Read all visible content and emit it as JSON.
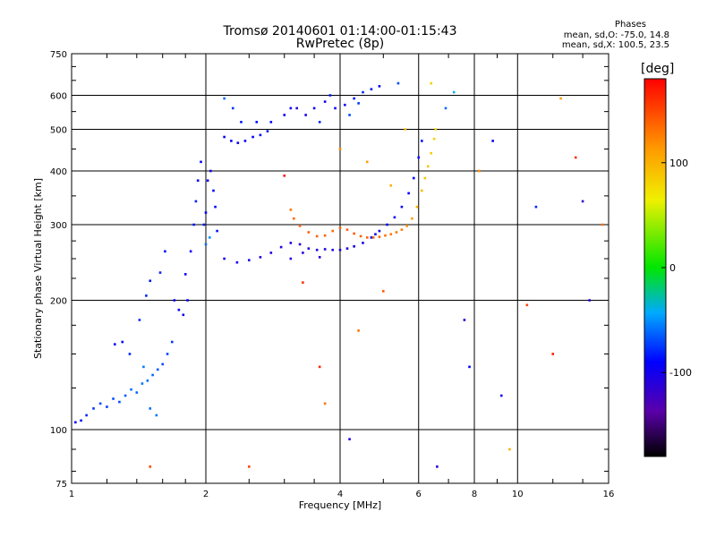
{
  "header": {
    "title_line1": "Tromsø 20140601 01:14:00-01:15:43",
    "title_line2": "RwPretec (8p)",
    "stats_title": "Phases",
    "stats_o": "mean, sd,O: -75.0, 14.8",
    "stats_x": "mean, sd,X: 100.5, 23.5"
  },
  "colorbar": {
    "unit": "[deg]",
    "range": [
      -180,
      180
    ],
    "ticks": [
      {
        "value": 100,
        "label": "100"
      },
      {
        "value": 0,
        "label": "0"
      },
      {
        "value": -100,
        "label": "-100"
      }
    ]
  },
  "chart_data": {
    "type": "scatter",
    "xlabel": "Frequency [MHz]",
    "ylabel": "Stationary phase Virtual Height [km]",
    "xscale": "log",
    "yscale": "log",
    "xlim": [
      1,
      16
    ],
    "ylim": [
      75,
      750
    ],
    "xticks": [
      {
        "value": 1,
        "label": "1"
      },
      {
        "value": 2,
        "label": "2"
      },
      {
        "value": 4,
        "label": "4"
      },
      {
        "value": 6,
        "label": "6"
      },
      {
        "value": 8,
        "label": "8"
      },
      {
        "value": 10,
        "label": "10"
      },
      {
        "value": 16,
        "label": "16"
      }
    ],
    "yticks": [
      {
        "value": 75,
        "label": "75"
      },
      {
        "value": 100,
        "label": "100"
      },
      {
        "value": 200,
        "label": "200"
      },
      {
        "value": 300,
        "label": "300"
      },
      {
        "value": 400,
        "label": "400"
      },
      {
        "value": 500,
        "label": "500"
      },
      {
        "value": 600,
        "label": "600"
      },
      {
        "value": 750,
        "label": "750"
      }
    ],
    "grid": true,
    "series": [
      {
        "points": [
          [
            1.02,
            104,
            -90
          ],
          [
            1.05,
            105,
            -85
          ],
          [
            1.08,
            108,
            -80
          ],
          [
            1.12,
            112,
            -75
          ],
          [
            1.16,
            115,
            -70
          ],
          [
            1.2,
            113,
            -72
          ],
          [
            1.24,
            118,
            -68
          ],
          [
            1.28,
            116,
            -70
          ],
          [
            1.32,
            120,
            -65
          ],
          [
            1.36,
            124,
            -60
          ],
          [
            1.4,
            122,
            -62
          ],
          [
            1.44,
            128,
            -58
          ],
          [
            1.48,
            130,
            -60
          ],
          [
            1.52,
            134,
            -62
          ],
          [
            1.56,
            138,
            -65
          ],
          [
            1.6,
            142,
            -70
          ],
          [
            1.64,
            150,
            -72
          ],
          [
            1.68,
            160,
            -75
          ],
          [
            1.3,
            160,
            -90
          ],
          [
            1.25,
            158,
            -95
          ],
          [
            1.35,
            150,
            -80
          ],
          [
            1.45,
            140,
            -55
          ],
          [
            1.5,
            112,
            -60
          ],
          [
            1.55,
            108,
            -58
          ],
          [
            1.42,
            180,
            -78
          ],
          [
            1.47,
            205,
            -80
          ],
          [
            1.5,
            222,
            -85
          ],
          [
            1.58,
            232,
            -80
          ],
          [
            1.62,
            260,
            -88
          ],
          [
            1.7,
            200,
            -92
          ],
          [
            1.74,
            190,
            -95
          ],
          [
            1.78,
            185,
            -98
          ],
          [
            1.82,
            200,
            -95
          ],
          [
            1.8,
            230,
            -92
          ],
          [
            1.85,
            260,
            -90
          ],
          [
            1.88,
            300,
            -85
          ],
          [
            1.9,
            340,
            -82
          ],
          [
            1.92,
            380,
            -90
          ],
          [
            1.95,
            420,
            -88
          ],
          [
            1.98,
            300,
            -85
          ],
          [
            2.0,
            320,
            -90
          ],
          [
            2.02,
            380,
            -95
          ],
          [
            2.05,
            400,
            -100
          ],
          [
            2.08,
            360,
            -92
          ],
          [
            2.1,
            330,
            -88
          ],
          [
            2.12,
            290,
            -85
          ],
          [
            2.0,
            270,
            -60
          ],
          [
            2.04,
            280,
            -50
          ]
        ]
      },
      {
        "points": [
          [
            2.2,
            480,
            -90
          ],
          [
            2.28,
            470,
            -92
          ],
          [
            2.36,
            465,
            -95
          ],
          [
            2.45,
            470,
            -92
          ],
          [
            2.55,
            480,
            -90
          ],
          [
            2.65,
            485,
            -88
          ],
          [
            2.75,
            495,
            -85
          ],
          [
            2.3,
            560,
            -75
          ],
          [
            2.2,
            590,
            -60
          ],
          [
            2.4,
            520,
            -85
          ],
          [
            2.6,
            520,
            -88
          ],
          [
            2.8,
            520,
            -90
          ],
          [
            3.0,
            540,
            -95
          ],
          [
            3.1,
            560,
            -100
          ],
          [
            3.2,
            560,
            -105
          ],
          [
            3.35,
            540,
            -100
          ],
          [
            3.5,
            560,
            -95
          ],
          [
            3.7,
            580,
            -100
          ],
          [
            3.9,
            560,
            -95
          ],
          [
            4.1,
            570,
            -90
          ],
          [
            4.3,
            590,
            -85
          ],
          [
            4.5,
            610,
            -80
          ],
          [
            4.7,
            620,
            -85
          ],
          [
            4.9,
            630,
            -90
          ],
          [
            3.6,
            520,
            -80
          ],
          [
            3.8,
            600,
            -85
          ],
          [
            4.2,
            540,
            -70
          ],
          [
            4.4,
            575,
            -75
          ]
        ]
      },
      {
        "points": [
          [
            2.2,
            250,
            -100
          ],
          [
            2.35,
            245,
            -102
          ],
          [
            2.5,
            248,
            -104
          ],
          [
            2.65,
            252,
            -105
          ],
          [
            2.8,
            258,
            -106
          ],
          [
            2.95,
            266,
            -107
          ],
          [
            3.1,
            272,
            -108
          ],
          [
            3.25,
            270,
            -108
          ],
          [
            3.4,
            264,
            -107
          ],
          [
            3.55,
            262,
            -106
          ],
          [
            3.7,
            263,
            -105
          ],
          [
            3.85,
            262,
            -104
          ],
          [
            4.0,
            262,
            -103
          ],
          [
            4.15,
            264,
            -102
          ],
          [
            4.3,
            267,
            -101
          ],
          [
            4.5,
            272,
            -100
          ],
          [
            4.7,
            280,
            -100
          ],
          [
            4.9,
            290,
            -98
          ],
          [
            5.1,
            300,
            -96
          ],
          [
            5.3,
            312,
            -95
          ],
          [
            5.5,
            330,
            -94
          ],
          [
            5.7,
            355,
            -92
          ],
          [
            5.85,
            385,
            -90
          ],
          [
            6.0,
            430,
            -88
          ],
          [
            6.1,
            470,
            -86
          ],
          [
            3.1,
            250,
            -110
          ],
          [
            3.3,
            258,
            -108
          ],
          [
            3.6,
            252,
            -105
          ],
          [
            4.8,
            285,
            -99
          ]
        ]
      },
      {
        "points": [
          [
            3.1,
            325,
            130
          ],
          [
            3.15,
            310,
            135
          ],
          [
            3.25,
            298,
            138
          ],
          [
            3.4,
            288,
            140
          ],
          [
            3.55,
            282,
            140
          ],
          [
            3.7,
            283,
            138
          ],
          [
            3.85,
            290,
            136
          ],
          [
            4.0,
            295,
            138
          ],
          [
            4.15,
            292,
            140
          ],
          [
            4.3,
            286,
            142
          ],
          [
            4.45,
            282,
            140
          ],
          [
            4.6,
            280,
            138
          ],
          [
            4.75,
            280,
            136
          ],
          [
            4.9,
            281,
            134
          ],
          [
            5.05,
            283,
            132
          ],
          [
            5.2,
            285,
            130
          ],
          [
            5.35,
            288,
            128
          ],
          [
            5.5,
            292,
            126
          ],
          [
            5.65,
            298,
            120
          ],
          [
            5.8,
            310,
            110
          ],
          [
            5.95,
            330,
            100
          ],
          [
            6.1,
            360,
            95
          ],
          [
            6.2,
            385,
            90
          ],
          [
            6.3,
            410,
            88
          ],
          [
            6.4,
            440,
            85
          ],
          [
            6.5,
            475,
            82
          ],
          [
            6.55,
            500,
            80
          ]
        ]
      },
      {
        "points": [
          [
            1.5,
            82,
            150
          ],
          [
            2.5,
            82,
            150
          ],
          [
            3.0,
            390,
            170
          ],
          [
            3.3,
            220,
            160
          ],
          [
            3.6,
            140,
            165
          ],
          [
            4.0,
            450,
            120
          ],
          [
            4.4,
            170,
            130
          ],
          [
            4.6,
            420,
            110
          ],
          [
            5.2,
            370,
            100
          ],
          [
            5.6,
            500,
            90
          ],
          [
            6.4,
            640,
            80
          ],
          [
            7.2,
            610,
            -40
          ],
          [
            7.6,
            180,
            -110
          ],
          [
            8.2,
            400,
            120
          ],
          [
            9.6,
            90,
            100
          ],
          [
            10.5,
            195,
            150
          ],
          [
            11,
            330,
            -80
          ],
          [
            12.5,
            590,
            110
          ],
          [
            13.5,
            430,
            160
          ],
          [
            14,
            340,
            -120
          ],
          [
            14.5,
            200,
            -110
          ],
          [
            15.5,
            300,
            130
          ],
          [
            6.6,
            82,
            -110
          ],
          [
            7.8,
            140,
            -90
          ],
          [
            9.2,
            120,
            -100
          ],
          [
            5.0,
            210,
            140
          ],
          [
            4.2,
            95,
            -105
          ],
          [
            3.7,
            115,
            130
          ],
          [
            12,
            150,
            170
          ],
          [
            8.8,
            470,
            -90
          ],
          [
            6.9,
            560,
            -60
          ],
          [
            5.4,
            640,
            -70
          ]
        ]
      }
    ]
  }
}
